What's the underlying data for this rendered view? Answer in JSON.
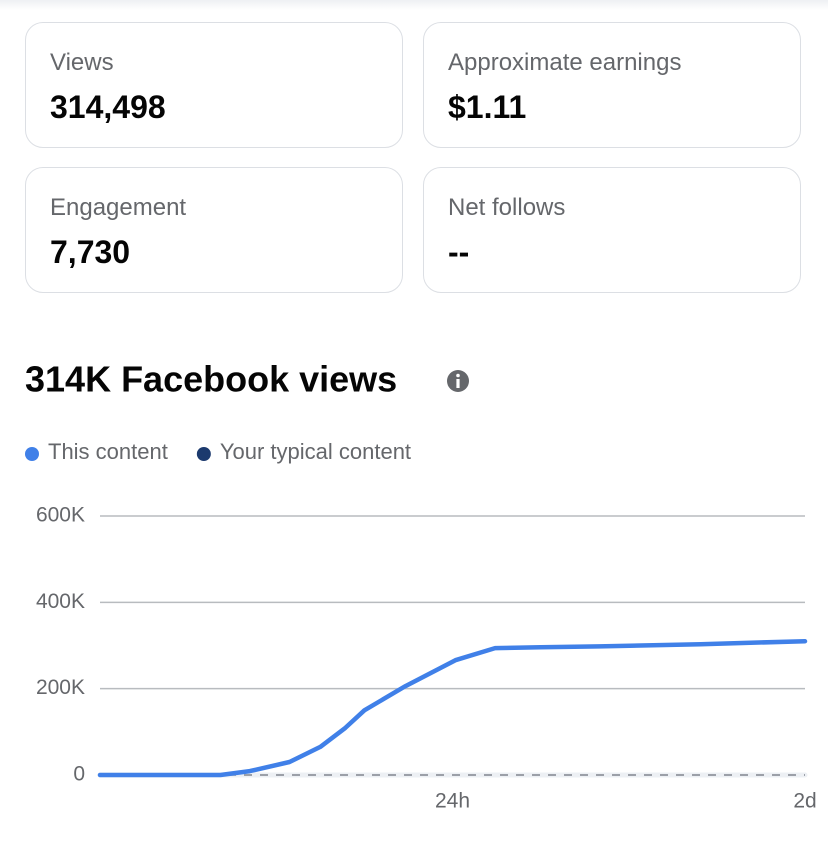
{
  "cards": [
    {
      "label": "Views",
      "value": "314,498"
    },
    {
      "label": "Approximate earnings",
      "value": "$1.11"
    },
    {
      "label": "Engagement",
      "value": "7,730"
    },
    {
      "label": "Net follows",
      "value": "--"
    }
  ],
  "chart_data": {
    "type": "line",
    "title": "314K Facebook views",
    "series": [
      {
        "name": "This content",
        "color": "#4080e8",
        "x": [
          0,
          8.2,
          10.2,
          12.9,
          15.0,
          16.7,
          18.0,
          20.8,
          24.2,
          26.9,
          30,
          34,
          40.9,
          48
        ],
        "values": [
          0,
          0,
          9000,
          30000,
          65000,
          109000,
          150000,
          206000,
          266000,
          294000,
          296000,
          298000,
          303000,
          310000
        ]
      },
      {
        "name": "Your typical content",
        "color": "#1c3a6e",
        "x": [
          0,
          48
        ],
        "values": [
          0,
          0
        ]
      }
    ],
    "xlim": [
      0,
      48
    ],
    "xticks": [
      {
        "value": 24,
        "label": "24h"
      },
      {
        "value": 48,
        "label": "2d"
      }
    ],
    "ylim": [
      0,
      600000
    ],
    "yticks": [
      0,
      {
        "value": 200000,
        "label": "200K"
      },
      {
        "value": 400000,
        "label": "400K"
      },
      {
        "value": 600000,
        "label": "600K"
      }
    ],
    "grid": true
  }
}
